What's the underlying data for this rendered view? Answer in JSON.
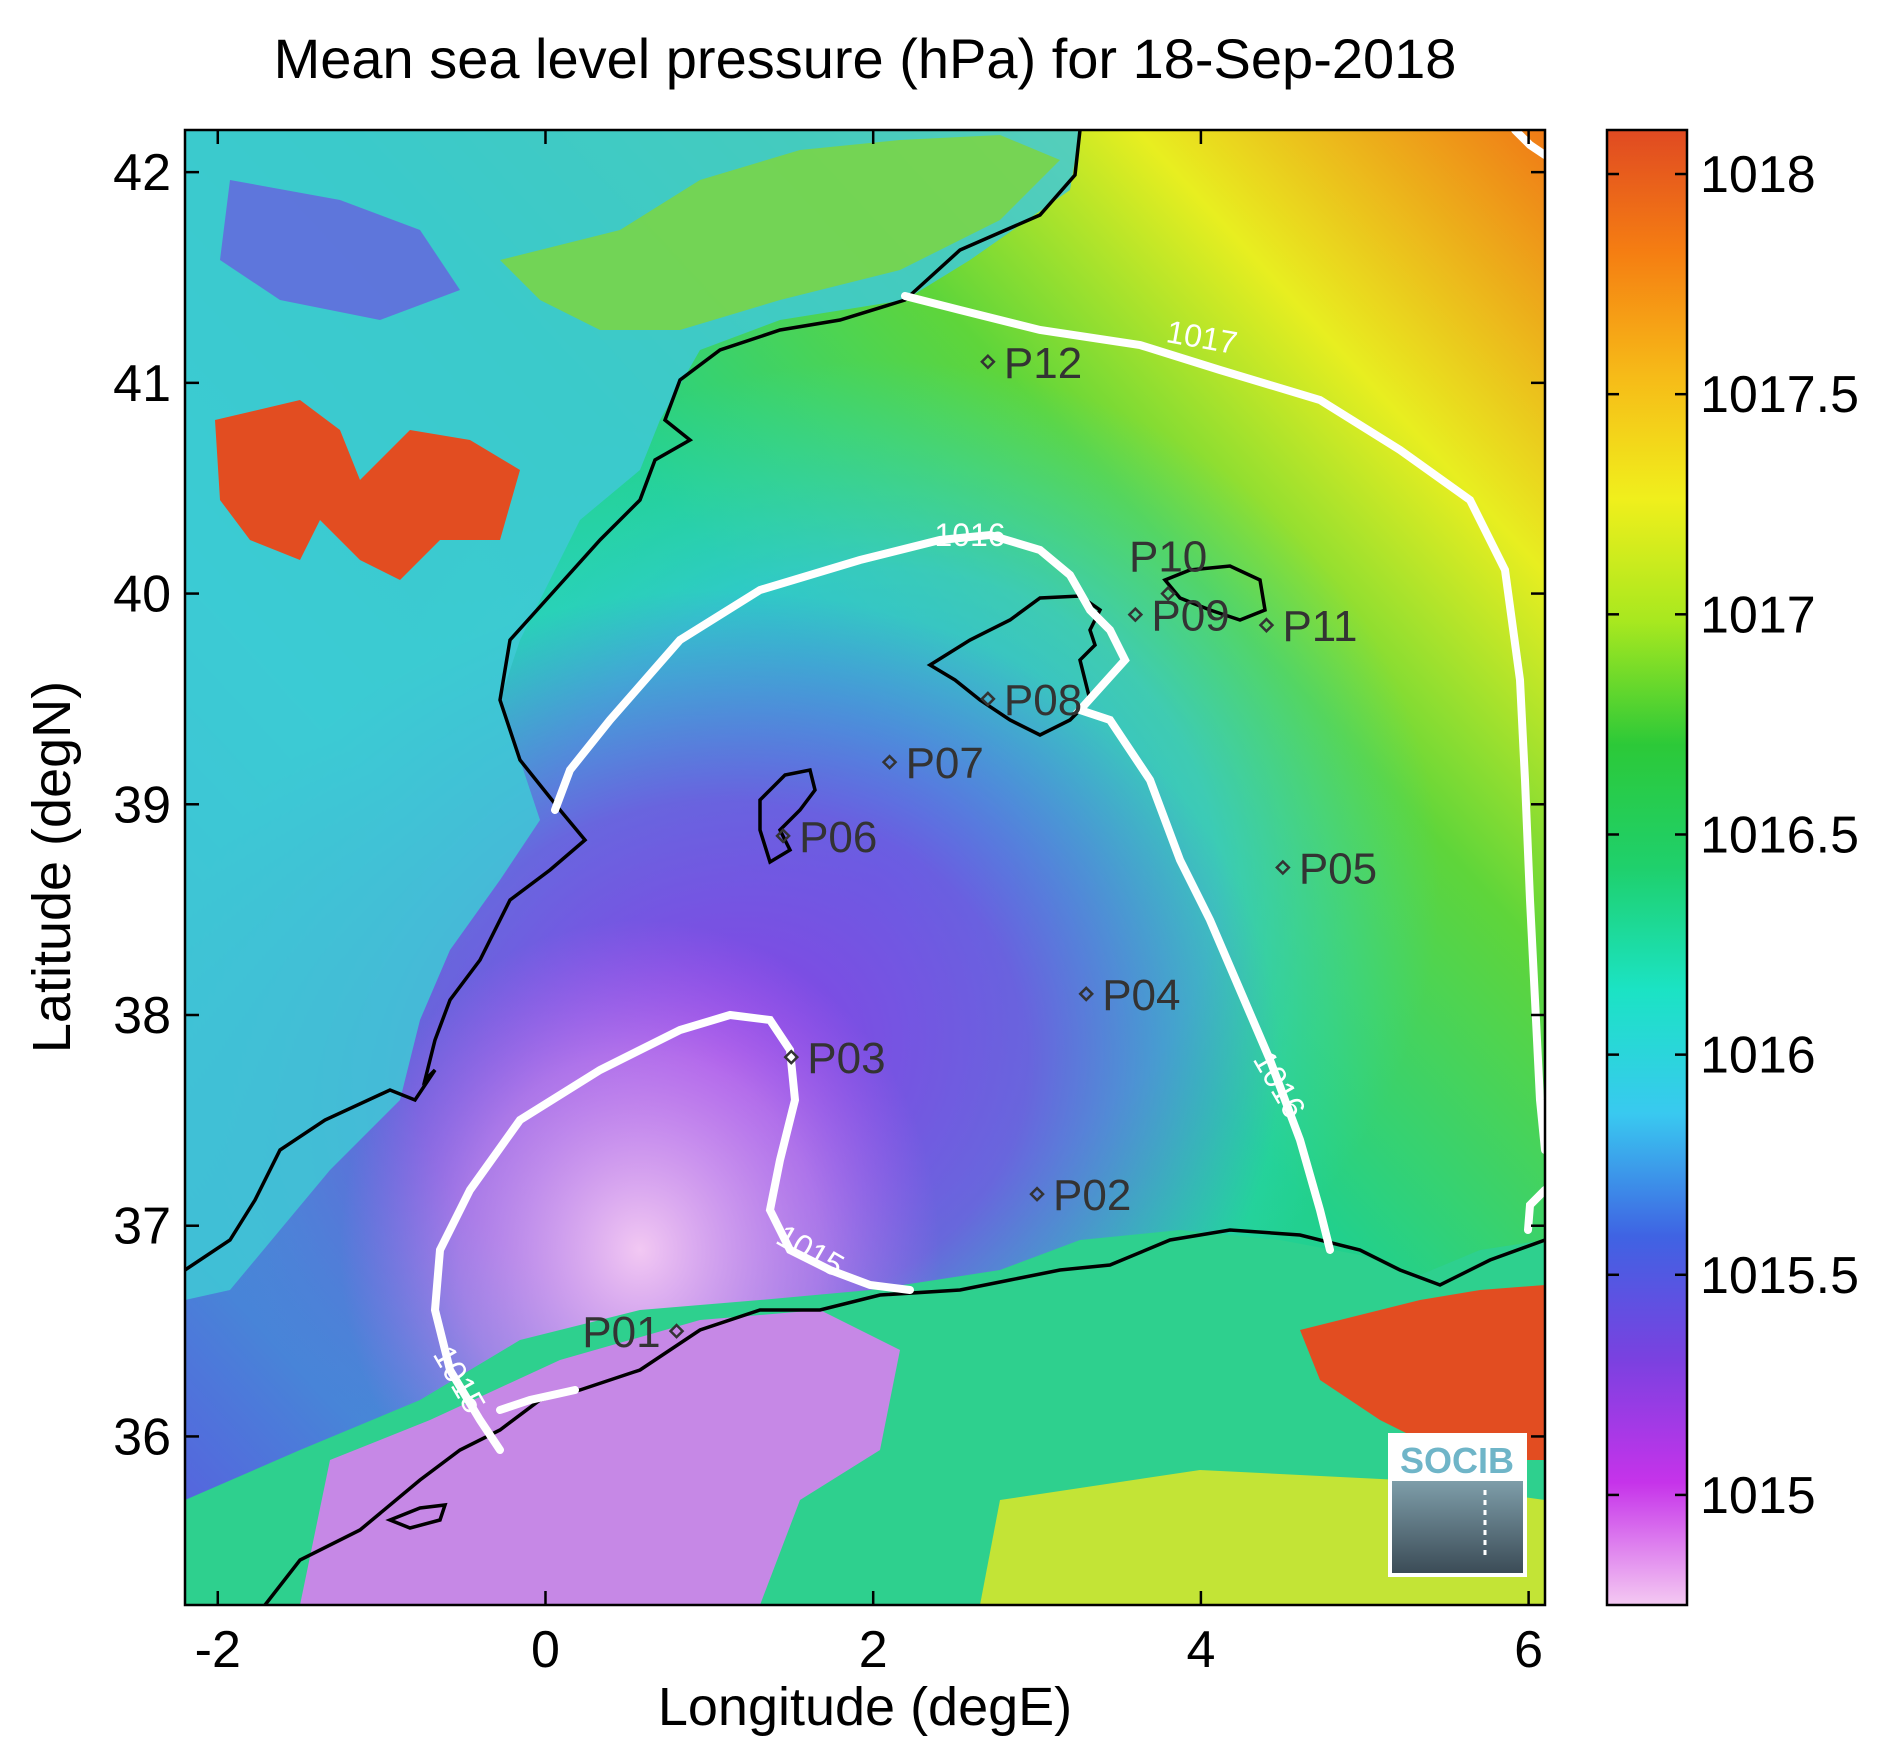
{
  "chart_data": {
    "type": "heatmap",
    "title": "Mean sea level pressure (hPa) for 18-Sep-2018",
    "xlabel": "Longitude (degE)",
    "ylabel": "Latitude (degN)",
    "xlim": [
      -2.2,
      6.1
    ],
    "ylim": [
      35.2,
      42.2
    ],
    "x_ticks": [
      -2,
      0,
      2,
      4,
      6
    ],
    "x_tick_labels": [
      "-2",
      "0",
      "2",
      "4",
      "6"
    ],
    "y_ticks": [
      36,
      37,
      38,
      39,
      40,
      41,
      42
    ],
    "y_tick_labels": [
      "36",
      "37",
      "38",
      "39",
      "40",
      "41",
      "42"
    ],
    "colorbar": {
      "range": [
        1014.75,
        1018.1
      ],
      "ticks": [
        1015,
        1015.5,
        1016,
        1016.5,
        1017,
        1017.5,
        1018
      ],
      "tick_labels": [
        "1015",
        "1015.5",
        "1016",
        "1016.5",
        "1017",
        "1017.5",
        "1018"
      ],
      "colormap": [
        "#f4c9f2",
        "#c633ea",
        "#7a41e0",
        "#3f63e3",
        "#39c9f0",
        "#1be3c4",
        "#1fd06c",
        "#2cc938",
        "#a8e81f",
        "#f0ef1c",
        "#f6bb18",
        "#f57e12",
        "#e04a22"
      ]
    },
    "contours": [
      {
        "level": 1015,
        "label": "1015",
        "color": "#ffffff"
      },
      {
        "level": 1016,
        "label": "1016",
        "color": "#ffffff"
      },
      {
        "level": 1017,
        "label": "1017",
        "color": "#ffffff"
      }
    ],
    "stations": [
      {
        "name": "P01",
        "lon": 0.8,
        "lat": 36.5
      },
      {
        "name": "P02",
        "lon": 3.0,
        "lat": 37.15
      },
      {
        "name": "P03",
        "lon": 1.5,
        "lat": 37.8
      },
      {
        "name": "P04",
        "lon": 3.3,
        "lat": 38.1
      },
      {
        "name": "P05",
        "lon": 4.5,
        "lat": 38.7
      },
      {
        "name": "P06",
        "lon": 1.45,
        "lat": 38.85
      },
      {
        "name": "P07",
        "lon": 2.1,
        "lat": 39.2
      },
      {
        "name": "P08",
        "lon": 2.7,
        "lat": 39.5
      },
      {
        "name": "P09",
        "lon": 3.6,
        "lat": 39.9
      },
      {
        "name": "P10",
        "lon": 3.8,
        "lat": 40.0
      },
      {
        "name": "P11",
        "lon": 4.4,
        "lat": 39.85
      },
      {
        "name": "P12",
        "lon": 2.7,
        "lat": 41.1
      }
    ],
    "grid": false,
    "logo": "SOCIB"
  }
}
